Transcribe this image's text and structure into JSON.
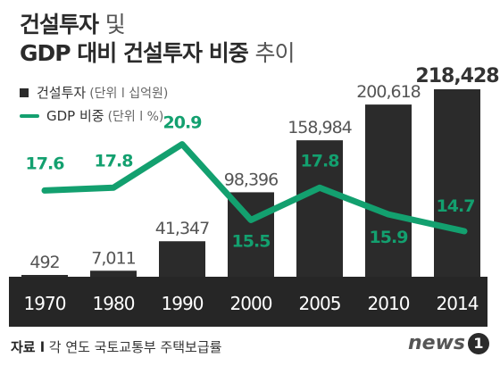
{
  "title": {
    "line1_bold": "건설투자",
    "line1_rest": "및",
    "line2_bold": "GDP 대비 건설투자 비중",
    "line2_rest": "추이"
  },
  "legend": {
    "bar_label": "건설투자",
    "bar_unit": "(단위 l 십억원)",
    "line_label": "GDP 비중",
    "line_unit": "(단위 l %)"
  },
  "footer": {
    "source_label": "자료 l",
    "source_text": "각 연도 국토교통부 주택보급률"
  },
  "logo": {
    "text": "news",
    "mark": "1"
  },
  "colors": {
    "bar": "#2b2b2b",
    "line": "#13a06f",
    "axis_band": "#262626",
    "value_text": "#555555"
  },
  "chart_data": {
    "type": "bar",
    "categories": [
      "1970",
      "1980",
      "1990",
      "2000",
      "2005",
      "2010",
      "2014"
    ],
    "series": [
      {
        "name": "건설투자",
        "type": "bar",
        "unit": "십억원",
        "values": [
          492,
          7011,
          41347,
          98396,
          158984,
          200618,
          218428
        ],
        "labels": [
          "492",
          "7,011",
          "41,347",
          "98,396",
          "158,984",
          "200,618",
          "218,428"
        ]
      },
      {
        "name": "GDP 비중",
        "type": "line",
        "unit": "%",
        "values": [
          17.6,
          17.8,
          20.9,
          15.5,
          17.8,
          15.9,
          14.7
        ],
        "labels": [
          "17.6",
          "17.8",
          "20.9",
          "15.5",
          "17.8",
          "15.9",
          "14.7"
        ]
      }
    ],
    "grid": false,
    "legend_position": "top-left"
  }
}
